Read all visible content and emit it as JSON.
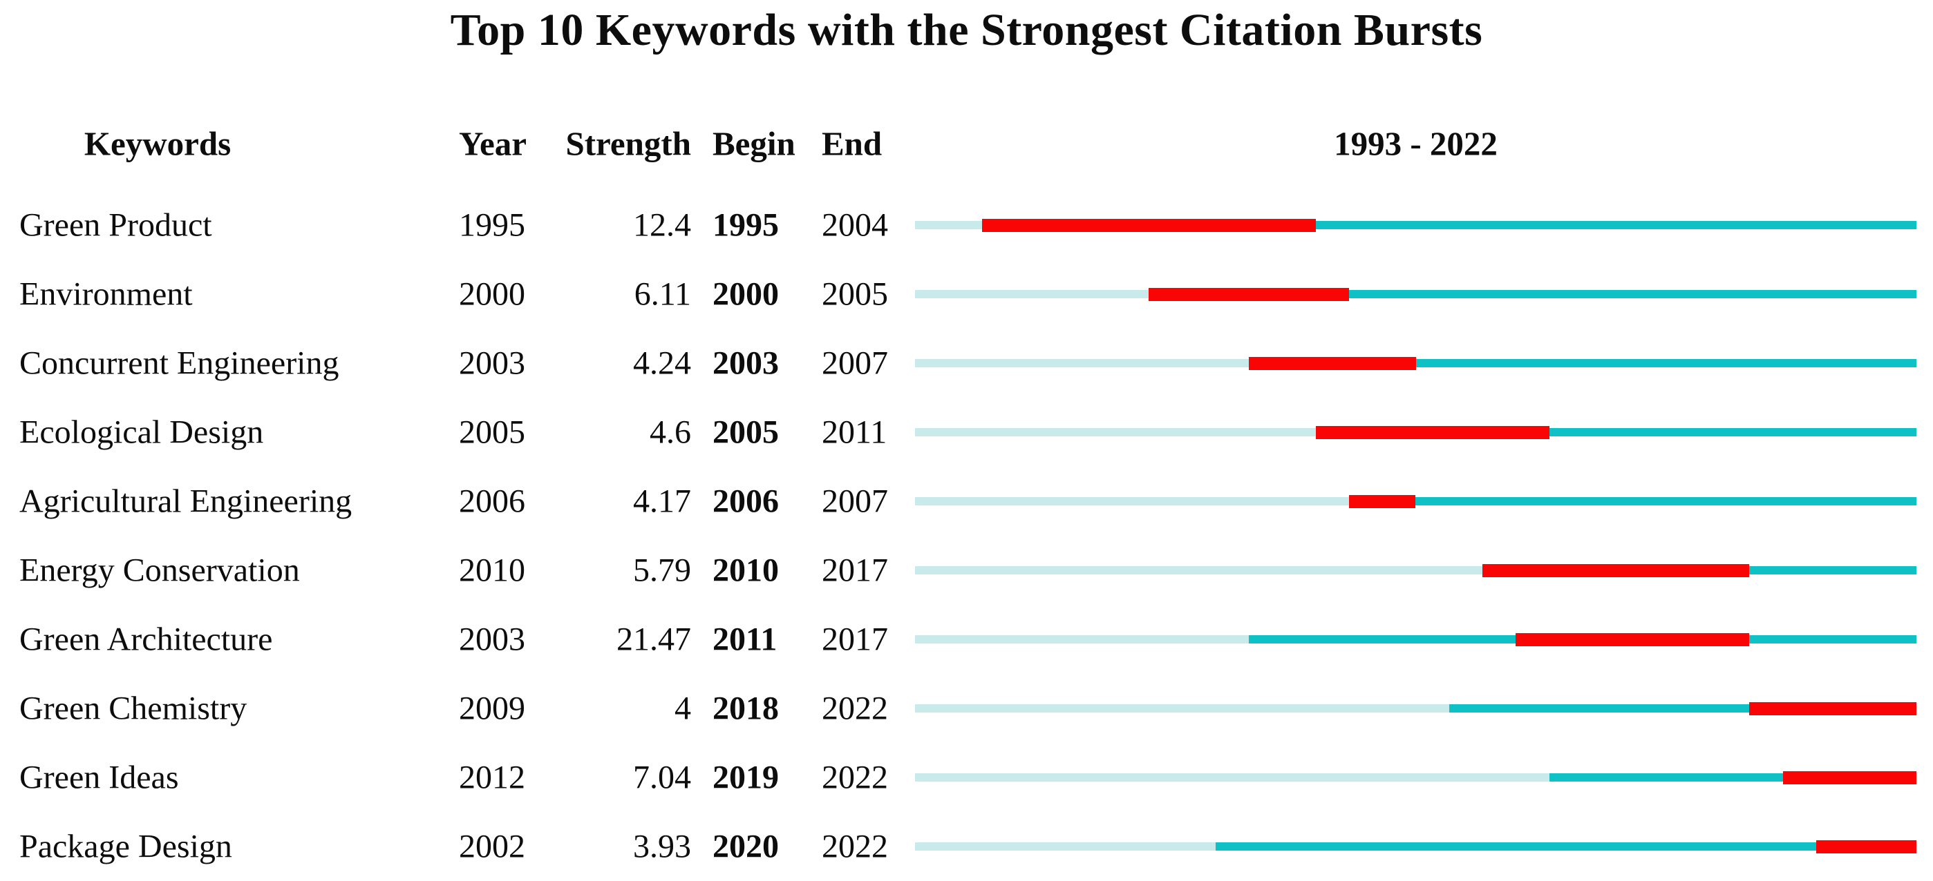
{
  "page_title": "Top 10 Keywords with the Strongest Citation Bursts",
  "header": {
    "keywords": "Keywords",
    "year": "Year",
    "strength": "Strength",
    "begin": "Begin",
    "end": "End",
    "range": "1993 - 2022"
  },
  "colors": {
    "pre_appearance_segment": "#c8eaea",
    "active_segment": "#0ec1c4",
    "burst_segment": "#f90505",
    "text": "#0d0d0d",
    "background": "#ffffff"
  },
  "chart_data": {
    "type": "gantt",
    "title": "Top 10 Keywords with the Strongest Citation Bursts",
    "columns": [
      "Keywords",
      "Year",
      "Strength",
      "Begin",
      "End"
    ],
    "timeline_label": "1993 - 2022",
    "x_range": [
      1993,
      2022
    ],
    "segment_semantics": {
      "pre": "years before keyword first appears (pale cyan)",
      "active": "years keyword present without burst (teal)",
      "burst": "citation burst years Begin..End inclusive (red)"
    },
    "rows": [
      {
        "keyword": "Green Product",
        "year": 1995,
        "strength": 12.4,
        "begin": 1995,
        "end": 2004
      },
      {
        "keyword": "Environment",
        "year": 2000,
        "strength": 6.11,
        "begin": 2000,
        "end": 2005
      },
      {
        "keyword": "Concurrent Engineering",
        "year": 2003,
        "strength": 4.24,
        "begin": 2003,
        "end": 2007
      },
      {
        "keyword": "Ecological Design",
        "year": 2005,
        "strength": 4.6,
        "begin": 2005,
        "end": 2011
      },
      {
        "keyword": "Agricultural Engineering",
        "year": 2006,
        "strength": 4.17,
        "begin": 2006,
        "end": 2007
      },
      {
        "keyword": "Energy Conservation",
        "year": 2010,
        "strength": 5.79,
        "begin": 2010,
        "end": 2017
      },
      {
        "keyword": "Green Architecture",
        "year": 2003,
        "strength": 21.47,
        "begin": 2011,
        "end": 2017
      },
      {
        "keyword": "Green Chemistry",
        "year": 2009,
        "strength": 4,
        "begin": 2018,
        "end": 2022
      },
      {
        "keyword": "Green Ideas",
        "year": 2012,
        "strength": 7.04,
        "begin": 2019,
        "end": 2022
      },
      {
        "keyword": "Package Design",
        "year": 2002,
        "strength": 3.93,
        "begin": 2020,
        "end": 2022
      }
    ]
  }
}
